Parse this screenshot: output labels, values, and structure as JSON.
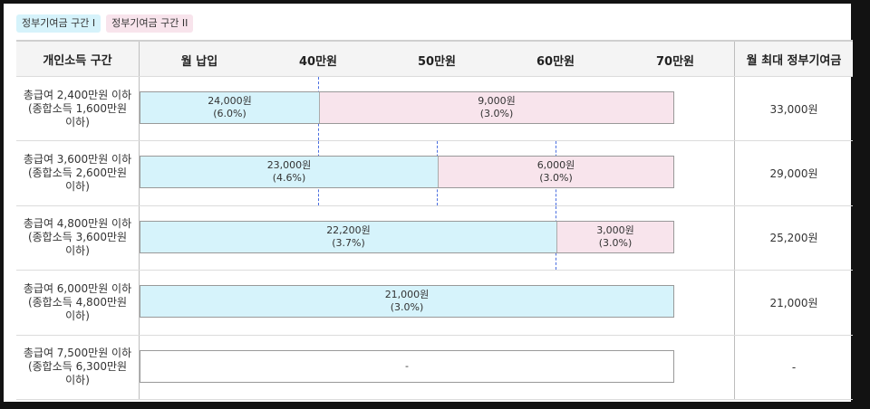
{
  "legend": {
    "tier1": "정부기여금 구간 I",
    "tier2": "정부기여금 구간 II"
  },
  "header": {
    "income_col": "개인소득 구간",
    "payment_col": "월 납입",
    "tick_40": "40만원",
    "tick_50": "50만원",
    "tick_60": "60만원",
    "tick_70": "70만원",
    "max_col": "월 최대 정부기여금"
  },
  "colors": {
    "tier1": "#d6f3fb",
    "tier2": "#f8e4ec"
  },
  "rows": [
    {
      "income_line1": "총급여 2,400만원 이하",
      "income_line2": "(종합소득 1,600만원",
      "income_line3": "이하)",
      "tier1_amount": "24,000원",
      "tier1_rate": "(6.0%)",
      "tier1_limit_manwon": 40,
      "tier2_amount": "9,000원",
      "tier2_rate": "(3.0%)",
      "total": "33,000원"
    },
    {
      "income_line1": "총급여 3,600만원 이하",
      "income_line2": "(종합소득 2,600만원",
      "income_line3": "이하)",
      "tier1_amount": "23,000원",
      "tier1_rate": "(4.6%)",
      "tier1_limit_manwon": 50,
      "tier2_amount": "6,000원",
      "tier2_rate": "(3.0%)",
      "total": "29,000원"
    },
    {
      "income_line1": "총급여 4,800만원 이하",
      "income_line2": "(종합소득 3,600만원",
      "income_line3": "이하)",
      "tier1_amount": "22,200원",
      "tier1_rate": "(3.7%)",
      "tier1_limit_manwon": 60,
      "tier2_amount": "3,000원",
      "tier2_rate": "(3.0%)",
      "total": "25,200원"
    },
    {
      "income_line1": "총급여 6,000만원 이하",
      "income_line2": "(종합소득 4,800만원",
      "income_line3": "이하)",
      "tier1_amount": "21,000원",
      "tier1_rate": "(3.0%)",
      "tier1_limit_manwon": 70,
      "total": "21,000원"
    },
    {
      "income_line1": "총급여 7,500만원 이하",
      "income_line2": "(종합소득 6,300만원",
      "income_line3": "이하)",
      "none_label": "-",
      "total": "-"
    }
  ]
}
